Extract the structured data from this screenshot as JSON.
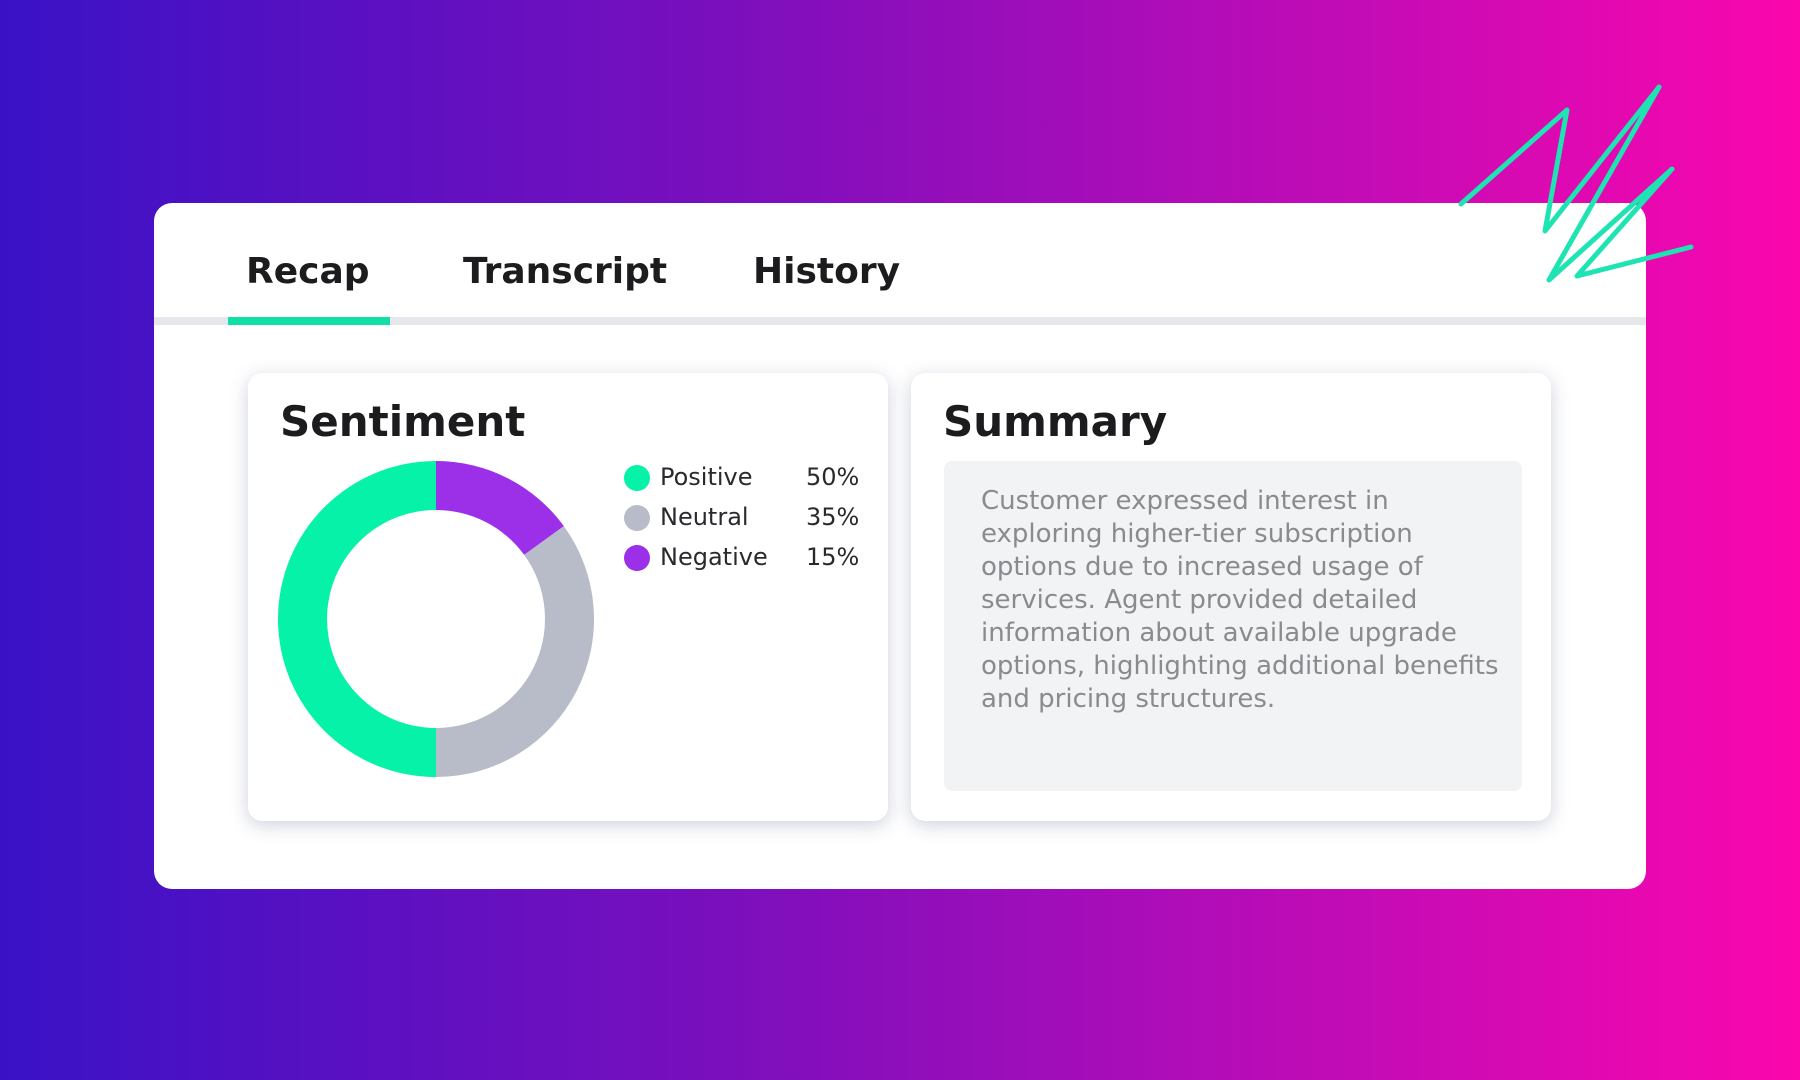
{
  "tabs": [
    {
      "label": "Recap",
      "active": true
    },
    {
      "label": "Transcript",
      "active": false
    },
    {
      "label": "History",
      "active": false
    }
  ],
  "sentiment": {
    "title": "Sentiment",
    "items": [
      {
        "label": "Positive",
        "percent_label": "50%",
        "value": 50,
        "color": "#05f2a8"
      },
      {
        "label": "Neutral",
        "percent_label": "35%",
        "value": 35,
        "color": "#b8bcc8"
      },
      {
        "label": "Negative",
        "percent_label": "15%",
        "value": 15,
        "color": "#9b30e8"
      }
    ]
  },
  "summary": {
    "title": "Summary",
    "text": "Customer expressed interest in exploring higher-tier subscription options due to increased usage of services. Agent provided detailed information about available upgrade options, highlighting additional benefits and pricing structures."
  },
  "colors": {
    "accent": "#10e0a6",
    "squiggle": "#1ee3b3"
  },
  "chart_data": {
    "type": "pie",
    "categories": [
      "Positive",
      "Neutral",
      "Negative"
    ],
    "values": [
      50,
      35,
      15
    ],
    "title": "Sentiment"
  }
}
